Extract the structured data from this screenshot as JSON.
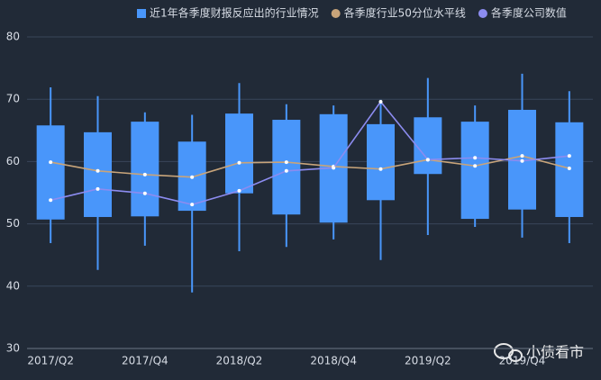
{
  "chart_data": {
    "type": "box",
    "categories": [
      "2017/Q2",
      null,
      "2017/Q4",
      null,
      "2018/Q2",
      null,
      "2018/Q4",
      null,
      "2019/Q2",
      null,
      "2019/Q4",
      null
    ],
    "ylim": [
      30,
      80
    ],
    "yticks": [
      30,
      40,
      50,
      60,
      70,
      80
    ],
    "grid": true,
    "legend": "top",
    "series": [
      {
        "name": "近1年各季度财报反应出的行业情况",
        "type": "box",
        "color": "#4996fa",
        "low": [
          46.9,
          42.6,
          46.5,
          39.0,
          45.6,
          46.3,
          47.5,
          44.2,
          48.2,
          49.5,
          47.8,
          46.9
        ],
        "q1": [
          50.7,
          51.1,
          51.2,
          52.1,
          54.9,
          51.5,
          50.2,
          53.8,
          58.0,
          50.8,
          52.3,
          51.1
        ],
        "q3": [
          65.8,
          64.7,
          66.4,
          63.2,
          67.7,
          66.7,
          67.6,
          66.0,
          67.1,
          66.4,
          68.3,
          66.3
        ],
        "high": [
          71.9,
          70.5,
          67.9,
          67.5,
          72.6,
          69.2,
          69.0,
          69.9,
          73.4,
          69.0,
          74.1,
          71.3
        ]
      },
      {
        "name": "各季度行业50分位水平线",
        "type": "line",
        "color": "#c8a47a",
        "values": [
          59.9,
          58.5,
          57.9,
          57.5,
          59.8,
          59.9,
          59.2,
          58.8,
          60.3,
          59.3,
          60.9,
          58.9
        ]
      },
      {
        "name": "各季度公司数值",
        "type": "line",
        "color": "#8c8cf0",
        "values": [
          53.8,
          55.6,
          54.9,
          53.1,
          55.3,
          58.5,
          59.0,
          69.6,
          60.3,
          60.6,
          60.1,
          60.9
        ]
      }
    ]
  },
  "watermark": "小债看市"
}
